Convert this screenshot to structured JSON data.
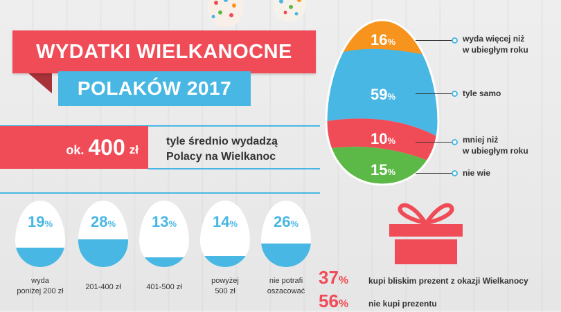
{
  "title": {
    "line1": "WYDATKI WIELKANOCNE",
    "line2": "POLAKÓW 2017"
  },
  "average": {
    "prefix": "ok.",
    "number": "400",
    "unit": "zł",
    "text_line1": "tyle średnio wydadzą",
    "text_line2": "Polacy na Wielkanoc"
  },
  "spending_eggs": [
    {
      "value": "19",
      "pct": "%",
      "label_line1": "wyda",
      "label_line2": "poniżej 200 zł"
    },
    {
      "value": "28",
      "pct": "%",
      "label_line1": "201-400 zł",
      "label_line2": ""
    },
    {
      "value": "13",
      "pct": "%",
      "label_line1": "401-500 zł",
      "label_line2": ""
    },
    {
      "value": "14",
      "pct": "%",
      "label_line1": "powyżej",
      "label_line2": "500 zł"
    },
    {
      "value": "26",
      "pct": "%",
      "label_line1": "nie potrafi",
      "label_line2": "oszacować"
    }
  ],
  "big_egg": [
    {
      "value": "16",
      "pct": "%",
      "color": "#f7941d",
      "label_line1": "wyda więcej niż",
      "label_line2": "w ubiegłym roku"
    },
    {
      "value": "59",
      "pct": "%",
      "color": "#49b7e3",
      "label_line1": "tyle samo",
      "label_line2": ""
    },
    {
      "value": "10",
      "pct": "%",
      "color": "#f04c57",
      "label_line1": "mniej niż",
      "label_line2": "w ubiegłym roku"
    },
    {
      "value": "15",
      "pct": "%",
      "color": "#5cb947",
      "label_line1": "nie wie",
      "label_line2": ""
    }
  ],
  "gift": {
    "stat1_value": "37",
    "stat1_pct": "%",
    "stat1_text": "kupi bliskim prezent z okazji  Wielkanocy",
    "stat2_value": "56",
    "stat2_pct": "%",
    "stat2_text": "nie kupi prezentu"
  },
  "colors": {
    "red": "#f04c57",
    "blue": "#49b7e3",
    "orange": "#f7941d",
    "green": "#5cb947"
  },
  "icons": [
    "easter-egg-decoration-icon",
    "gift-box-icon"
  ]
}
